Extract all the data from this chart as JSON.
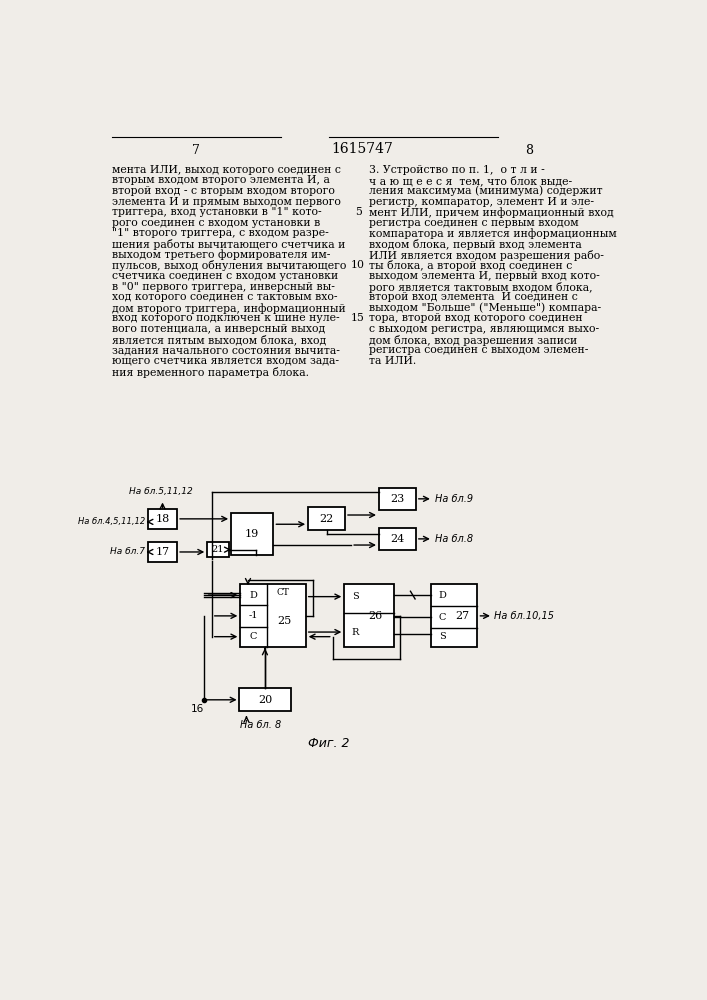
{
  "page_num_left": "7",
  "page_num_center": "1615747",
  "page_num_right": "8",
  "text_left_lines": [
    "мента ИЛИ, выход которого соединен с",
    "вторым входом второго элемента И, а",
    "второй вход - с вторым входом второго",
    "элемента И и прямым выходом первого",
    "триггера, вход установки в \"1\" кото-",
    "рого соединен с входом установки в",
    "\"1\" второго триггера, с входом разре-",
    "шения работы вычитающего счетчика и",
    "выходом третьего формирователя им-",
    "пульсов, выход обнуления вычитающего",
    "счетчика соединен с входом установки",
    "в \"0\" первого триггера, инверсный вы-",
    "ход которого соединен с тактовым вхо-",
    "дом второго триггера, информационный",
    "вход которого подключен к шине нуле-",
    "вого потенциала, а инверсный выход",
    "является пятым выходом блока, вход",
    "задания начального состояния вычита-",
    "ющего счетчика является входом зада-",
    "ния временного параметра блока."
  ],
  "text_right_lines": [
    "3. Устройство по п. 1,  о т л и -",
    "ч а ю щ е е с я  тем, что блок выде-",
    "ления максимума (минимума) содержит",
    "регистр, компаратор, элемент И и эле-",
    "мент ИЛИ, причем информационный вход",
    "регистра соединен с первым входом",
    "компаратора и является информационным",
    "входом блока, первый вход элемента",
    "ИЛИ является входом разрешения рабо-",
    "ты блока, а второй вход соединен с",
    "выходом элемента И, первый вход кото-",
    "рого является тактовым входом блока,",
    "второй вход элемента  И соединен с",
    "выходом \"Больше\" (\"Меньше\") компара-",
    "тора, второй вход которого соединен",
    "с выходом регистра, являющимся выхо-",
    "дом блока, вход разрешения записи",
    "регистра соединен с выходом элемен-",
    "та ИЛИ."
  ],
  "fig_label": "Фиг. 2",
  "bg_color": "#f0ede8"
}
